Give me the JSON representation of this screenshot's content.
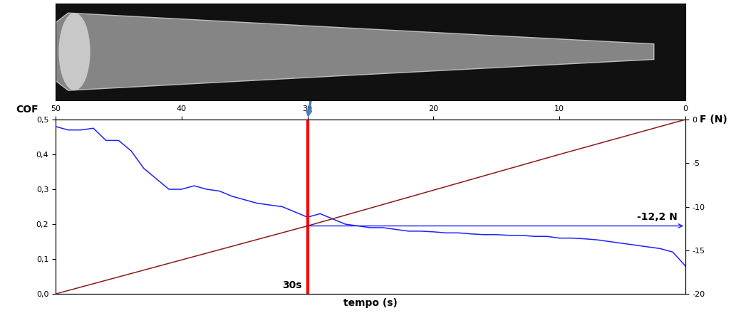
{
  "chart_data": {
    "type": "line",
    "x_label": "tempo (s)",
    "y_label": "COF",
    "y2_label": "F (N)",
    "x": [
      50,
      49,
      48,
      47,
      46,
      45,
      44,
      43,
      42,
      41,
      40,
      39,
      38,
      37,
      36,
      35,
      34,
      33,
      32,
      31,
      30,
      29,
      28,
      27,
      26,
      25,
      24,
      23,
      22,
      21,
      20,
      19,
      18,
      17,
      16,
      15,
      14,
      13,
      12,
      11,
      10,
      9,
      8,
      7,
      6,
      5,
      4,
      3,
      2,
      1,
      0
    ],
    "series": [
      {
        "name": "COF",
        "color": "#1f1fff",
        "axis": "y",
        "values": [
          0.48,
          0.47,
          0.47,
          0.475,
          0.44,
          0.44,
          0.41,
          0.36,
          0.33,
          0.3,
          0.3,
          0.31,
          0.3,
          0.295,
          0.28,
          0.27,
          0.26,
          0.255,
          0.25,
          0.235,
          0.22,
          0.23,
          0.215,
          0.2,
          0.195,
          0.19,
          0.19,
          0.185,
          0.18,
          0.18,
          0.178,
          0.175,
          0.175,
          0.172,
          0.17,
          0.17,
          0.168,
          0.168,
          0.165,
          0.165,
          0.16,
          0.16,
          0.158,
          0.155,
          0.15,
          0.145,
          0.14,
          0.135,
          0.13,
          0.12,
          0.08
        ]
      },
      {
        "name": "F (N)",
        "color": "#8b1a1a",
        "axis": "y2",
        "x": [
          50,
          40,
          30,
          20,
          10,
          0
        ],
        "values": [
          -20,
          -16.1,
          -12.2,
          -8.1,
          -4.0,
          0
        ]
      }
    ],
    "xlim": [
      50,
      0
    ],
    "xticks": [
      50,
      40,
      30,
      20,
      10,
      0
    ],
    "ylim": [
      0,
      0.5
    ],
    "yticks": [
      {
        "value": 0,
        "label": "0,0"
      },
      {
        "value": 0.1,
        "label": "0,1"
      },
      {
        "value": 0.2,
        "label": "0,2"
      },
      {
        "value": 0.3,
        "label": "0,3"
      },
      {
        "value": 0.4,
        "label": "0,4"
      },
      {
        "value": 0.5,
        "label": "0,5"
      }
    ],
    "y2lim": [
      -20,
      0
    ],
    "y2ticks": [
      0,
      -5,
      -10,
      -15,
      -20
    ],
    "annotations": [
      {
        "text": "30s",
        "x": 30,
        "color": "#ff0000"
      },
      {
        "text": "-12,2 N",
        "x": 30,
        "y2": -12.2,
        "color": "#1f1fff"
      }
    ],
    "grid": false
  }
}
